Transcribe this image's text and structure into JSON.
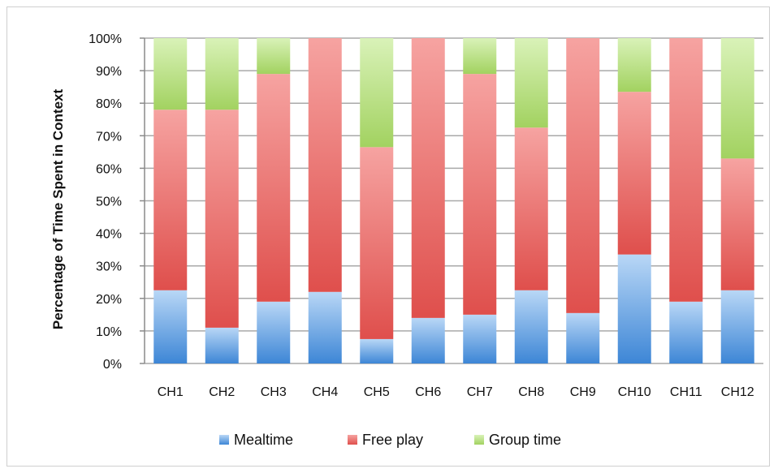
{
  "chart_data": {
    "type": "bar",
    "stacked": true,
    "percent": true,
    "title": "",
    "xlabel": "",
    "ylabel": "Percentage of Time Spent in Context",
    "ylim": [
      0,
      100
    ],
    "yticks": [
      "0%",
      "10%",
      "20%",
      "30%",
      "40%",
      "50%",
      "60%",
      "70%",
      "80%",
      "90%",
      "100%"
    ],
    "grid": true,
    "legend_position": "bottom",
    "categories": [
      "CH1",
      "CH2",
      "CH3",
      "CH4",
      "CH5",
      "CH6",
      "CH7",
      "CH8",
      "CH9",
      "CH10",
      "CH11",
      "CH12"
    ],
    "series": [
      {
        "name": "Mealtime",
        "color": "#4a90d9",
        "values": [
          22.5,
          11,
          19,
          22,
          7.5,
          14,
          15,
          22.5,
          15.5,
          33.5,
          19,
          22.5
        ]
      },
      {
        "name": "Free play",
        "color": "#e8605e",
        "values": [
          55.5,
          67,
          70,
          78,
          59,
          86,
          74,
          50,
          84.5,
          50,
          81,
          40.5
        ]
      },
      {
        "name": "Group time",
        "color": "#a9d86a",
        "values": [
          22,
          22,
          11,
          0,
          33.5,
          0,
          11,
          27.5,
          0,
          16.5,
          0,
          37
        ]
      }
    ]
  }
}
